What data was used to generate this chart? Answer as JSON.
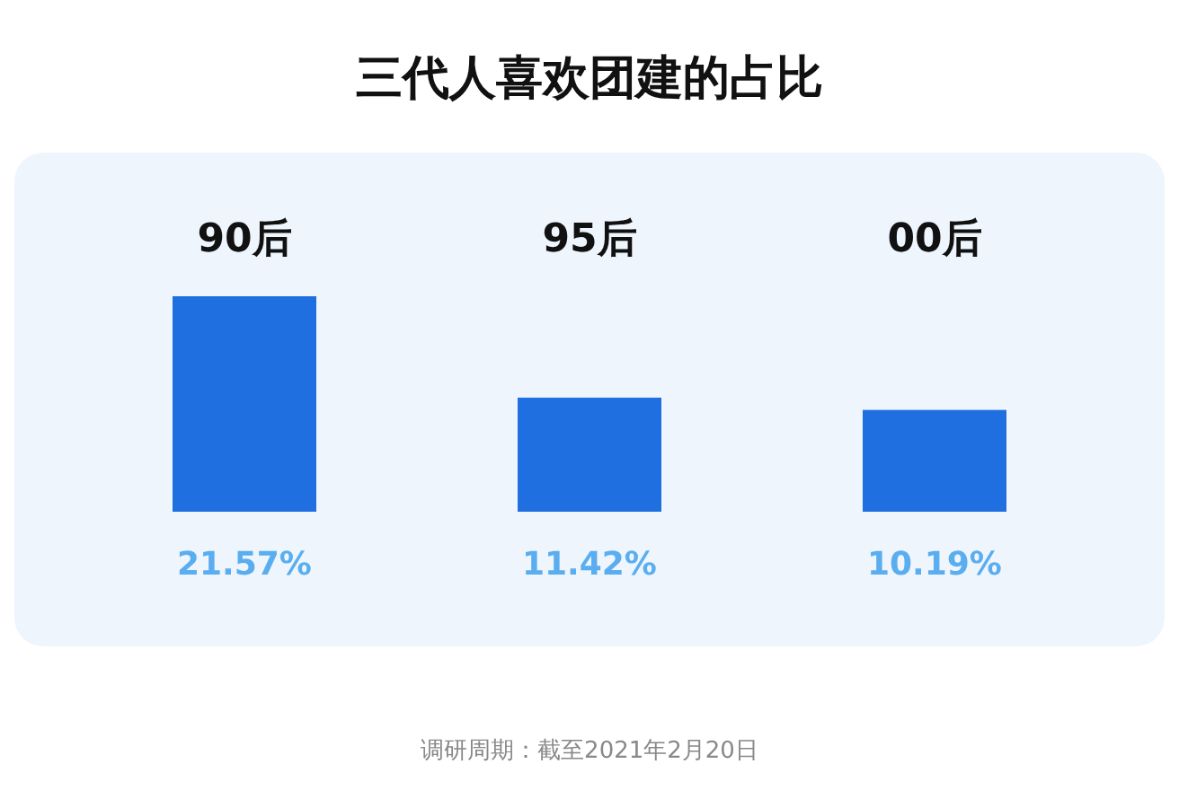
{
  "chart_data": {
    "type": "bar",
    "title": "三代人喜欢团建的占比",
    "categories": [
      "90后",
      "95后",
      "00后"
    ],
    "values": [
      21.57,
      11.42,
      10.19
    ],
    "color": "#1f6fe0",
    "value_labels": [
      "21.57%",
      "11.42%",
      "10.19%"
    ],
    "annotations": [
      "调研周期：截至2021年2月20日"
    ]
  }
}
